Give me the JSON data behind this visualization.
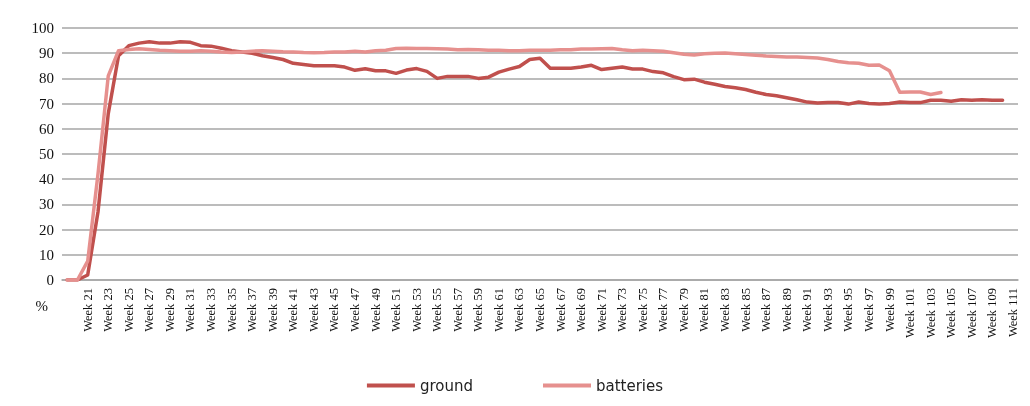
{
  "chart_data": {
    "type": "line",
    "ylabel": "%",
    "categories": [
      null,
      null,
      "Week 21",
      null,
      "Week 23",
      null,
      "Week 25",
      null,
      "Week 27",
      null,
      "Week 29",
      null,
      "Week 31",
      null,
      "Week 33",
      null,
      "Week 35",
      null,
      "Week 37",
      null,
      "Week 39",
      null,
      "Week 41",
      null,
      "Week 43",
      null,
      "Week 45",
      null,
      "Week 47",
      null,
      "Week 49",
      null,
      "Week 51",
      null,
      "Week 53",
      null,
      "Week 55",
      null,
      "Week 57",
      null,
      "Week 59",
      null,
      "Week 61",
      null,
      "Week 63",
      null,
      "Week 65",
      null,
      "Week 67",
      null,
      "Week 69",
      null,
      "Week 71",
      null,
      "Week 73",
      null,
      "Week 75",
      null,
      "Week 77",
      null,
      "Week 79",
      null,
      "Week 81",
      null,
      "Week 83",
      null,
      "Week 85",
      null,
      "Week 87",
      null,
      "Week 89",
      null,
      "Week 91",
      null,
      "Week 93",
      null,
      "Week 95",
      null,
      "Week 97",
      null,
      "Week 99",
      null,
      "Week 101",
      null,
      "Week 103",
      null,
      "Week 105",
      null,
      "Week 107",
      null,
      "Week 109",
      null,
      "Week 111"
    ],
    "series": [
      {
        "name": "ground",
        "color": "#c0504d",
        "values": [
          0,
          0,
          2,
          27,
          66,
          89,
          93,
          94,
          94.5,
          94,
          94,
          94.5,
          94.3,
          93,
          92.8,
          92,
          91,
          90.5,
          90,
          89,
          88.3,
          87.5,
          86,
          85.5,
          85,
          85,
          85,
          84.5,
          83.2,
          83.8,
          83,
          83,
          82,
          83.3,
          83.9,
          82.8,
          80,
          80.8,
          80.8,
          80.8,
          80,
          80.5,
          82.5,
          83.7,
          84.7,
          87.5,
          88,
          84,
          84,
          84,
          84.5,
          85.2,
          83.5,
          84,
          84.5,
          83.7,
          83.7,
          82.7,
          82.2,
          80.7,
          79.5,
          79.7,
          78.5,
          77.7,
          76.8,
          76.3,
          75.6,
          74.5,
          73.6,
          73.1,
          72.3,
          71.5,
          70.6,
          70.2,
          70.4,
          70.4,
          69.8,
          70.6,
          70,
          69.8,
          70,
          70.6,
          70.4,
          70.4,
          71.3,
          71.3,
          70.9,
          71.5,
          71.3,
          71.5,
          71.3,
          71.3,
          null
        ]
      },
      {
        "name": "batteries",
        "color": "#e6908e",
        "values": [
          0,
          0,
          7.5,
          42,
          81,
          91,
          91.5,
          91.8,
          91.5,
          91.2,
          91,
          90.8,
          90.8,
          91,
          90.8,
          90.5,
          90.3,
          90.5,
          90.8,
          91,
          90.8,
          90.6,
          90.5,
          90.3,
          90.2,
          90.3,
          90.5,
          90.5,
          90.8,
          90.5,
          91,
          91.2,
          91.9,
          92,
          91.9,
          91.9,
          91.8,
          91.7,
          91.4,
          91.5,
          91.4,
          91.2,
          91.2,
          91,
          91,
          91.2,
          91.2,
          91.2,
          91.4,
          91.4,
          91.7,
          91.7,
          91.8,
          91.9,
          91.4,
          91,
          91.2,
          91,
          90.8,
          90.2,
          89.6,
          89.3,
          89.8,
          90,
          90.1,
          89.8,
          89.5,
          89.2,
          88.9,
          88.7,
          88.5,
          88.5,
          88.3,
          88.1,
          87.5,
          86.7,
          86.2,
          86,
          85.2,
          85.3,
          83,
          74.5,
          74.6,
          74.6,
          73.6,
          74.4,
          null,
          null,
          null,
          null,
          null,
          null,
          null
        ]
      }
    ],
    "ylim": [
      0,
      100
    ],
    "yticks": [
      0,
      10,
      20,
      30,
      40,
      50,
      60,
      70,
      80,
      90,
      100
    ],
    "grid": "y",
    "legend": "bottom",
    "marker": "none",
    "line_style": "solid"
  }
}
